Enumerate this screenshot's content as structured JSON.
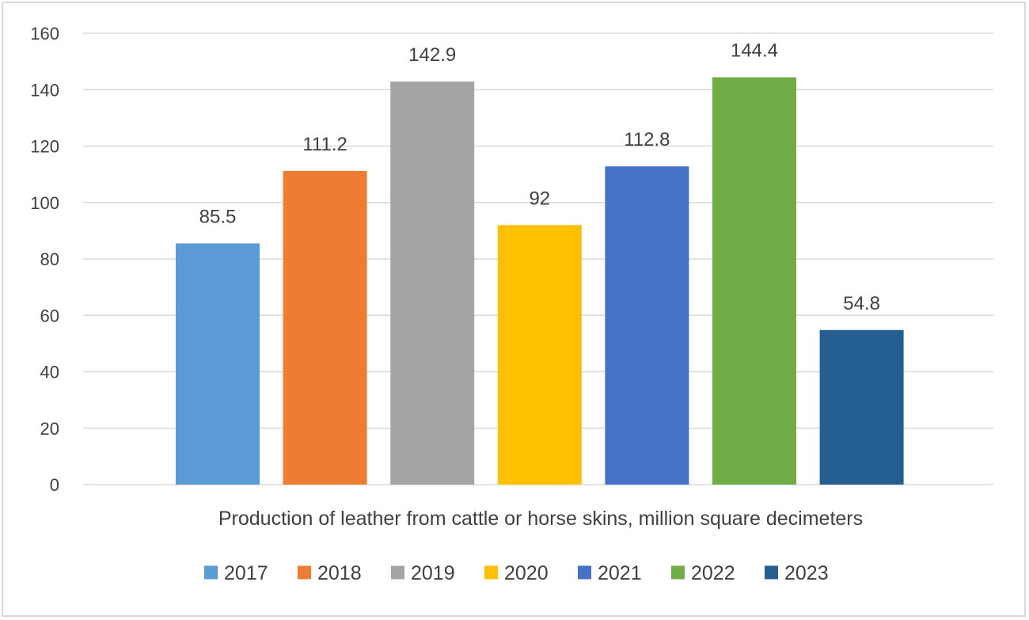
{
  "chart_data": {
    "type": "bar",
    "categories": [
      "Production of leather from cattle or horse skins, million square decimeters"
    ],
    "series": [
      {
        "name": "2017",
        "values": [
          85.5
        ],
        "color": "#5B9BD5"
      },
      {
        "name": "2018",
        "values": [
          111.2
        ],
        "color": "#ED7D31"
      },
      {
        "name": "2019",
        "values": [
          142.9
        ],
        "color": "#A5A5A5"
      },
      {
        "name": "2020",
        "values": [
          92
        ],
        "color": "#FFC000"
      },
      {
        "name": "2021",
        "values": [
          112.8
        ],
        "color": "#4472C4"
      },
      {
        "name": "2022",
        "values": [
          144.4
        ],
        "color": "#70AD47"
      },
      {
        "name": "2023",
        "values": [
          54.8
        ],
        "color": "#255E91"
      }
    ],
    "title": "",
    "xlabel": "",
    "ylabel": "",
    "ylim": [
      0,
      160
    ],
    "yticks": [
      "0",
      "20",
      "40",
      "60",
      "80",
      "100",
      "120",
      "140",
      "160"
    ],
    "grid": true,
    "legend_position": "bottom",
    "data_labels": true
  }
}
